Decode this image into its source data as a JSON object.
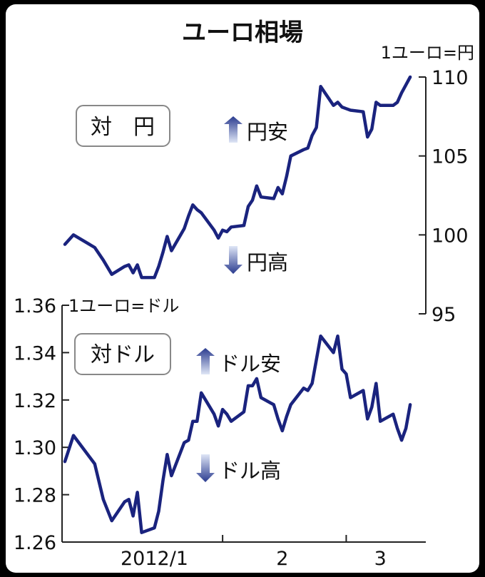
{
  "chart_data": [
    {
      "type": "line",
      "panel_label": "対　円",
      "unit_label": "1ユーロ=円",
      "y_axis_side": "right",
      "ylim": [
        95,
        110
      ],
      "yticks": [
        "95",
        "100",
        "105",
        "110"
      ],
      "up_note": "円安",
      "down_note": "円高",
      "series": [
        {
          "color": "#1a237e",
          "x": [
            "2011-12-26",
            "2011-12-28",
            "2012-01-02",
            "2012-01-04",
            "2012-01-06",
            "2012-01-09",
            "2012-01-10",
            "2012-01-11",
            "2012-01-12",
            "2012-01-13",
            "2012-01-16",
            "2012-01-17",
            "2012-01-18",
            "2012-01-19",
            "2012-01-20",
            "2012-01-23",
            "2012-01-24",
            "2012-01-25",
            "2012-01-26",
            "2012-01-27",
            "2012-01-30",
            "2012-01-31",
            "2012-02-01",
            "2012-02-02",
            "2012-02-03",
            "2012-02-06",
            "2012-02-07",
            "2012-02-08",
            "2012-02-09",
            "2012-02-10",
            "2012-02-13",
            "2012-02-14",
            "2012-02-15",
            "2012-02-16",
            "2012-02-17",
            "2012-02-20",
            "2012-02-21",
            "2012-02-22",
            "2012-02-23",
            "2012-02-24",
            "2012-02-27",
            "2012-02-28",
            "2012-02-29",
            "2012-03-01",
            "2012-03-02",
            "2012-03-05",
            "2012-03-06",
            "2012-03-07",
            "2012-03-08",
            "2012-03-09",
            "2012-03-12",
            "2012-03-13",
            "2012-03-14",
            "2012-03-15",
            "2012-03-16"
          ],
          "values": [
            99.4,
            100.0,
            99.2,
            98.4,
            97.5,
            98.0,
            98.1,
            97.6,
            98.1,
            97.3,
            97.3,
            98.0,
            98.9,
            99.9,
            99.0,
            100.4,
            101.2,
            101.9,
            101.6,
            101.4,
            100.3,
            99.8,
            100.3,
            100.2,
            100.5,
            100.6,
            101.8,
            102.2,
            103.1,
            102.4,
            102.3,
            103.0,
            102.6,
            103.7,
            105.0,
            105.4,
            105.5,
            106.3,
            106.8,
            109.4,
            108.2,
            108.4,
            108.1,
            108.0,
            107.9,
            107.8,
            106.2,
            106.7,
            108.4,
            108.2,
            108.2,
            108.4,
            109.0,
            109.5,
            110.0
          ]
        }
      ]
    },
    {
      "type": "line",
      "panel_label": "対ドル",
      "unit_label": "1ユーロ=ドル",
      "y_axis_side": "left",
      "ylim": [
        1.26,
        1.36
      ],
      "yticks": [
        "1.26",
        "1.28",
        "1.30",
        "1.32",
        "1.34",
        "1.36"
      ],
      "up_note": "ドル安",
      "down_note": "ドル高",
      "x_tick_labels": [
        "2012/1",
        "2",
        "3"
      ],
      "series": [
        {
          "color": "#1a237e",
          "x": [
            "2011-12-26",
            "2011-12-28",
            "2012-01-02",
            "2012-01-04",
            "2012-01-06",
            "2012-01-09",
            "2012-01-10",
            "2012-01-11",
            "2012-01-12",
            "2012-01-13",
            "2012-01-16",
            "2012-01-17",
            "2012-01-18",
            "2012-01-19",
            "2012-01-20",
            "2012-01-23",
            "2012-01-24",
            "2012-01-25",
            "2012-01-26",
            "2012-01-27",
            "2012-01-30",
            "2012-01-31",
            "2012-02-01",
            "2012-02-02",
            "2012-02-03",
            "2012-02-06",
            "2012-02-07",
            "2012-02-08",
            "2012-02-09",
            "2012-02-10",
            "2012-02-13",
            "2012-02-14",
            "2012-02-15",
            "2012-02-16",
            "2012-02-17",
            "2012-02-20",
            "2012-02-21",
            "2012-02-22",
            "2012-02-23",
            "2012-02-24",
            "2012-02-27",
            "2012-02-28",
            "2012-02-29",
            "2012-03-01",
            "2012-03-02",
            "2012-03-05",
            "2012-03-06",
            "2012-03-07",
            "2012-03-08",
            "2012-03-09",
            "2012-03-12",
            "2012-03-13",
            "2012-03-14",
            "2012-03-15",
            "2012-03-16"
          ],
          "values": [
            1.294,
            1.305,
            1.293,
            1.278,
            1.269,
            1.277,
            1.278,
            1.271,
            1.281,
            1.264,
            1.266,
            1.273,
            1.286,
            1.297,
            1.288,
            1.302,
            1.303,
            1.311,
            1.311,
            1.323,
            1.314,
            1.309,
            1.316,
            1.314,
            1.311,
            1.315,
            1.326,
            1.326,
            1.329,
            1.321,
            1.318,
            1.312,
            1.307,
            1.313,
            1.318,
            1.325,
            1.324,
            1.327,
            1.337,
            1.347,
            1.34,
            1.347,
            1.333,
            1.331,
            1.321,
            1.324,
            1.312,
            1.317,
            1.327,
            1.311,
            1.314,
            1.308,
            1.303,
            1.308,
            1.318
          ]
        }
      ]
    }
  ],
  "title": "ユーロ相場"
}
